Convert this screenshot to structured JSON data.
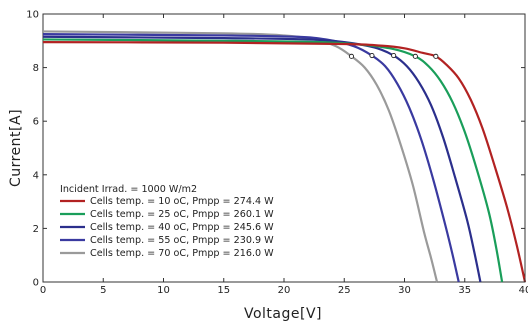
{
  "chart_data": {
    "type": "line",
    "xlabel": "Voltage[V]",
    "ylabel": "Current[A]",
    "xlim": [
      0,
      40
    ],
    "ylim": [
      0,
      10
    ],
    "xticks": [
      0,
      5,
      10,
      15,
      20,
      25,
      30,
      35,
      40
    ],
    "yticks": [
      0,
      2,
      4,
      6,
      8,
      10
    ],
    "grid": false,
    "legend_position": "bottom-left",
    "legend_title": "Incident Irrad. = 1000 W/m2",
    "series": [
      {
        "name": "Cells temp.  = 10 oC,  Pmpp = 274.4 W",
        "color": "#b22222",
        "isc": 8.95,
        "voc": 40.0,
        "mpp": [
          32.6,
          8.42
        ],
        "points": [
          [
            0,
            8.95
          ],
          [
            15,
            8.93
          ],
          [
            25,
            8.88
          ],
          [
            28,
            8.82
          ],
          [
            30,
            8.72
          ],
          [
            31.5,
            8.55
          ],
          [
            32.6,
            8.42
          ],
          [
            33.5,
            8.1
          ],
          [
            34.5,
            7.6
          ],
          [
            35.5,
            6.8
          ],
          [
            36.5,
            5.7
          ],
          [
            37.5,
            4.3
          ],
          [
            38.5,
            2.8
          ],
          [
            39.3,
            1.4
          ],
          [
            40.0,
            0
          ]
        ]
      },
      {
        "name": "Cells temp.  = 25 oC,  Pmpp = 260.1 W",
        "color": "#1a9e5a",
        "isc": 9.05,
        "voc": 38.1,
        "mpp": [
          30.9,
          8.42
        ],
        "points": [
          [
            0,
            9.05
          ],
          [
            15,
            9.0
          ],
          [
            23,
            8.95
          ],
          [
            26.5,
            8.85
          ],
          [
            29,
            8.7
          ],
          [
            30.9,
            8.42
          ],
          [
            32,
            8.05
          ],
          [
            33,
            7.5
          ],
          [
            34,
            6.7
          ],
          [
            35,
            5.6
          ],
          [
            36,
            4.2
          ],
          [
            37,
            2.6
          ],
          [
            37.6,
            1.3
          ],
          [
            38.1,
            0
          ]
        ]
      },
      {
        "name": "Cells temp.  = 40 oC,  Pmpp = 245.6 W",
        "color": "#2b2f8c",
        "isc": 9.15,
        "voc": 36.3,
        "mpp": [
          29.1,
          8.45
        ],
        "points": [
          [
            0,
            9.15
          ],
          [
            15,
            9.1
          ],
          [
            22,
            9.05
          ],
          [
            25,
            8.95
          ],
          [
            27.5,
            8.75
          ],
          [
            29.1,
            8.45
          ],
          [
            30.2,
            8.05
          ],
          [
            31.2,
            7.45
          ],
          [
            32.2,
            6.6
          ],
          [
            33.2,
            5.4
          ],
          [
            34.2,
            3.9
          ],
          [
            35.2,
            2.3
          ],
          [
            35.8,
            1.1
          ],
          [
            36.3,
            0
          ]
        ]
      },
      {
        "name": "Cells temp.  = 55 oC,  Pmpp = 230.9 W",
        "color": "#3a3aa0",
        "isc": 9.25,
        "voc": 34.5,
        "mpp": [
          27.3,
          8.45
        ],
        "points": [
          [
            0,
            9.25
          ],
          [
            15,
            9.2
          ],
          [
            21,
            9.15
          ],
          [
            23.5,
            9.05
          ],
          [
            25.8,
            8.8
          ],
          [
            27.3,
            8.45
          ],
          [
            28.4,
            8.05
          ],
          [
            29.4,
            7.4
          ],
          [
            30.4,
            6.5
          ],
          [
            31.4,
            5.3
          ],
          [
            32.4,
            3.8
          ],
          [
            33.4,
            2.1
          ],
          [
            34.0,
            1.0
          ],
          [
            34.5,
            0
          ]
        ]
      },
      {
        "name": "Cells temp.  = 70 oC,  Pmpp = 216.0 W",
        "color": "#9a9a9a",
        "isc": 9.35,
        "voc": 32.7,
        "mpp": [
          25.6,
          8.42
        ],
        "points": [
          [
            0,
            9.35
          ],
          [
            15,
            9.28
          ],
          [
            20,
            9.2
          ],
          [
            22.5,
            9.05
          ],
          [
            24.3,
            8.8
          ],
          [
            25.6,
            8.42
          ],
          [
            26.7,
            8.0
          ],
          [
            27.7,
            7.35
          ],
          [
            28.7,
            6.4
          ],
          [
            29.7,
            5.1
          ],
          [
            30.7,
            3.6
          ],
          [
            31.6,
            1.9
          ],
          [
            32.2,
            0.9
          ],
          [
            32.7,
            0
          ]
        ]
      }
    ]
  }
}
